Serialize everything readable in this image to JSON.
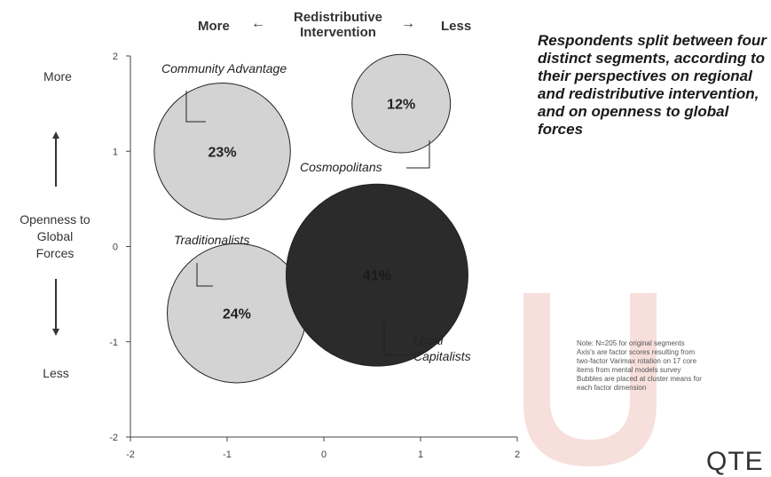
{
  "header": {
    "more": "More",
    "center_line1": "Redistributive",
    "center_line2": "Intervention",
    "less": "Less"
  },
  "y_side": {
    "more": "More",
    "title_line1": "Openness to",
    "title_line2": "Global",
    "title_line3": "Forces",
    "less": "Less"
  },
  "headline": "Respondents split between four distinct segments, according to their perspectives on regional and redistributive intervention, and on openness to global forces",
  "note": {
    "line1": "Note: N=205 for original segments",
    "line2": "Axis's are factor scores resulting from",
    "line3": "two-factor Varimax rotation on 17 core",
    "line4": "items from mental models survey",
    "line5": "Bubbles are placed at cluster means for",
    "line6": "each factor dimension"
  },
  "logo": "QTE",
  "colors": {
    "light_bubble": "#d3d3d3",
    "dark_bubble": "#2b2b2b",
    "axis": "#444444",
    "watermark": "#f0c4bf"
  },
  "chart_data": {
    "type": "scatter",
    "xlim": [
      -2,
      2
    ],
    "ylim": [
      -2,
      2
    ],
    "x_ticks": [
      "-2",
      "-1",
      "0",
      "1",
      "2"
    ],
    "y_ticks": [
      "2",
      "1",
      "0",
      "-1",
      "-2"
    ],
    "grid": false,
    "points": [
      {
        "name": "Community Advantage",
        "x": -1.05,
        "y": 1.0,
        "size_label": "23%",
        "value": 23,
        "fill": "light"
      },
      {
        "name": "Cosmopolitans",
        "x": 0.8,
        "y": 1.5,
        "size_label": "12%",
        "value": 12,
        "fill": "light"
      },
      {
        "name": "Traditionalists",
        "x": -0.9,
        "y": -0.7,
        "size_label": "24%",
        "value": 24,
        "fill": "light"
      },
      {
        "name": "Local Capitalists",
        "x": 0.55,
        "y": -0.3,
        "size_label": "41%",
        "value": 41,
        "fill": "dark"
      }
    ]
  }
}
